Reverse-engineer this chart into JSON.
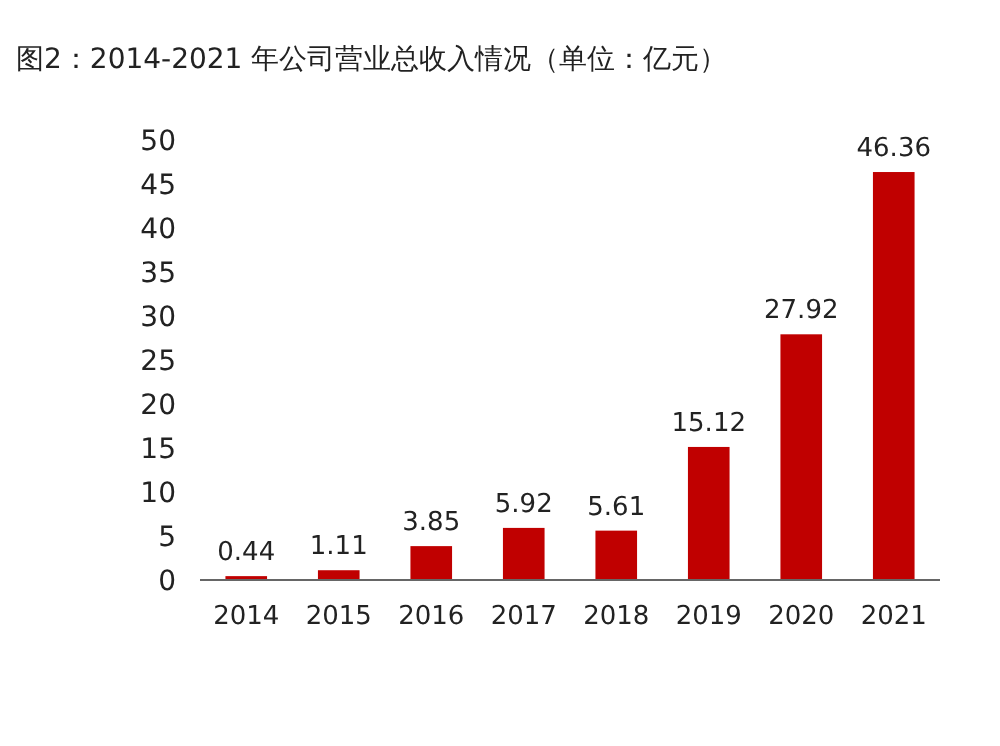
{
  "chart_data": {
    "type": "bar",
    "title": "图2：2014-2021 年公司营业总收入情况（单位：亿元）",
    "categories": [
      "2014",
      "2015",
      "2016",
      "2017",
      "2018",
      "2019",
      "2020",
      "2021"
    ],
    "values": [
      0.44,
      1.11,
      3.85,
      5.92,
      5.61,
      15.12,
      27.92,
      46.36
    ],
    "color": "#c00000",
    "ylim": [
      0,
      50
    ],
    "yticks": [
      0,
      5,
      10,
      15,
      20,
      25,
      30,
      35,
      40,
      45,
      50
    ],
    "data_labels": true
  }
}
